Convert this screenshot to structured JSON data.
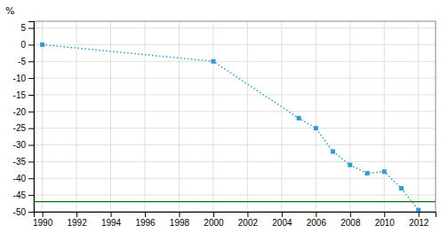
{
  "chart_data": {
    "type": "line",
    "ylabel": "%",
    "x": [
      1990,
      2000,
      2005,
      2006,
      2007,
      2008,
      2009,
      2010,
      2011,
      2012
    ],
    "series": [
      {
        "color": "#3399cc",
        "marker": "square",
        "line_style": "dotted",
        "values": [
          0,
          -5,
          -22,
          -25,
          -32,
          -36,
          -38.5,
          -38,
          -43,
          -49.5
        ]
      }
    ],
    "reference_line": {
      "y": -47,
      "color": "#007700"
    },
    "xlim": [
      1989.5,
      2013.0
    ],
    "ylim": [
      -50,
      7
    ],
    "xticks": [
      1990,
      1992,
      1994,
      1996,
      1998,
      2000,
      2002,
      2004,
      2006,
      2008,
      2010,
      2012
    ],
    "yticks": [
      5,
      0,
      -5,
      -10,
      -15,
      -20,
      -25,
      -30,
      -35,
      -40,
      -45,
      -50
    ],
    "grid": true
  }
}
